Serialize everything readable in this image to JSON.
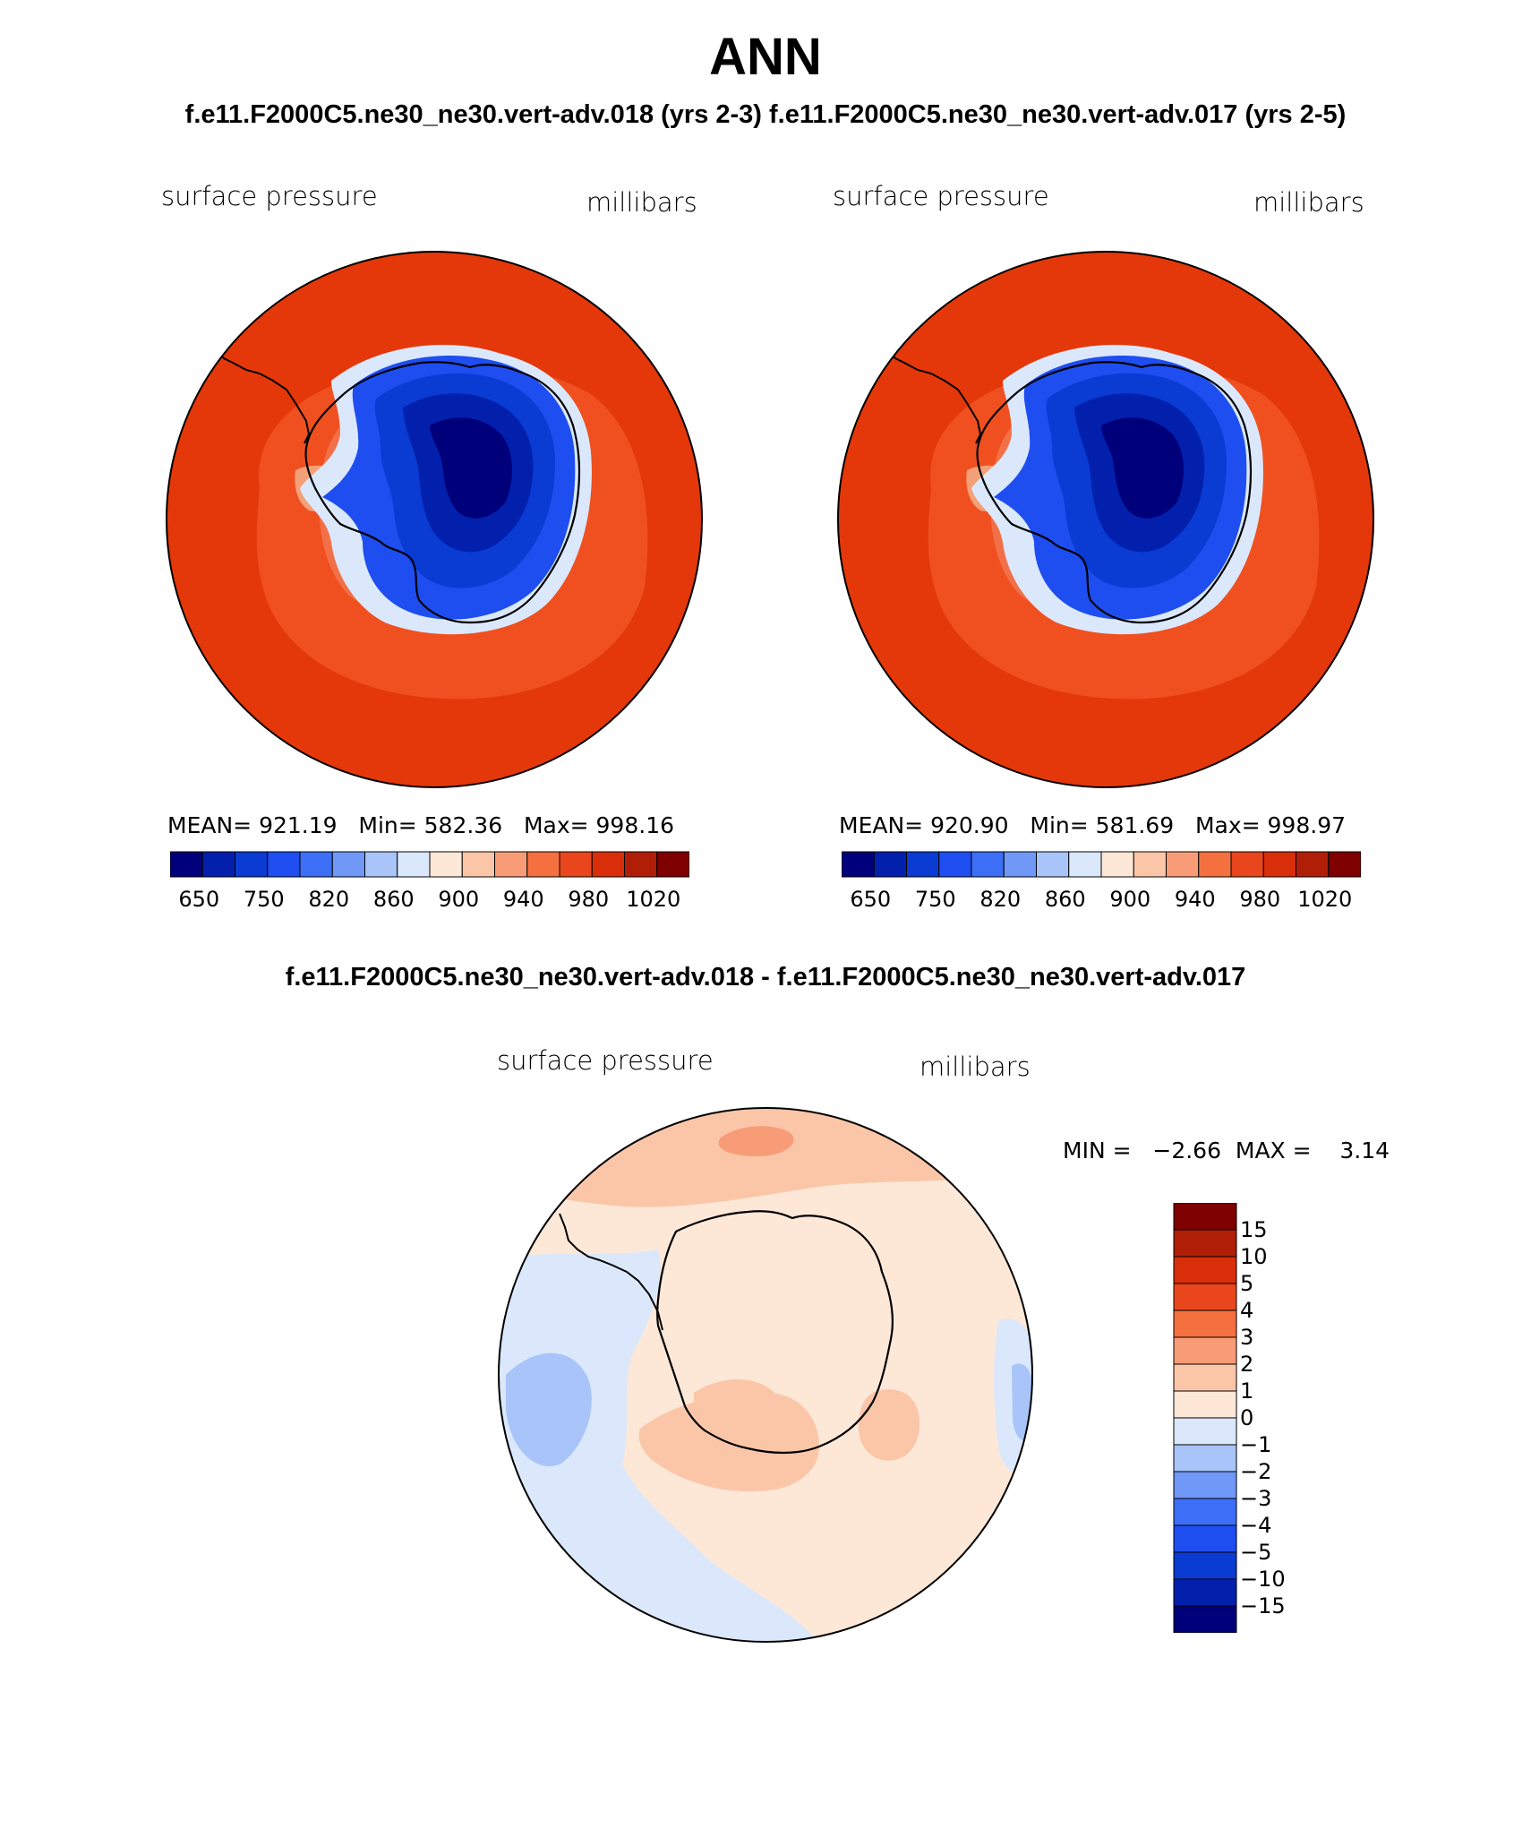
{
  "page_title": "ANN",
  "subtitle": "f.e11.F2000C5.ne30_ne30.vert-adv.018 (yrs 2-3) f.e11.F2000C5.ne30_ne30.vert-adv.017 (yrs 2-5)",
  "diff_title": "f.e11.F2000C5.ne30_ne30.vert-adv.018 - f.e11.F2000C5.ne30_ne30.vert-adv.017",
  "panels": [
    {
      "variable": "surface pressure",
      "units": "millibars",
      "stats_text": "MEAN= 921.19   Min= 582.36   Max= 998.16"
    },
    {
      "variable": "surface pressure",
      "units": "millibars",
      "stats_text": "MEAN= 920.90   Min= 581.69   Max= 998.97"
    }
  ],
  "diff_panel": {
    "variable": "surface pressure",
    "units": "millibars",
    "minmax_text": "MIN =   −2.66  MAX =    3.14"
  },
  "colorbar_field": {
    "colors": [
      "#00007a",
      "#0320ad",
      "#0a3bd3",
      "#1e4ef0",
      "#3d6ef6",
      "#7098f6",
      "#a8c4f8",
      "#dbe8fb",
      "#fde8d8",
      "#fbc6a8",
      "#f89c78",
      "#f5703f",
      "#e9461d",
      "#d92e0a",
      "#b11e08",
      "#7e0000"
    ],
    "labels": [
      "650",
      "750",
      "820",
      "860",
      "900",
      "940",
      "980",
      "1020"
    ]
  },
  "colorbar_diff": {
    "colors": [
      "#00007a",
      "#0320ad",
      "#0a3bd3",
      "#1e4ef0",
      "#3d6ef6",
      "#7098f6",
      "#a8c4f8",
      "#dbe8fb",
      "#fde8d8",
      "#fbc6a8",
      "#f89c78",
      "#f5703f",
      "#e9461d",
      "#d92e0a",
      "#b11e08",
      "#7e0000"
    ],
    "labels": [
      "15",
      "10",
      "5",
      "4",
      "3",
      "2",
      "1",
      "0",
      "−1",
      "−2",
      "−3",
      "−4",
      "−5",
      "−10",
      "−15"
    ]
  }
}
